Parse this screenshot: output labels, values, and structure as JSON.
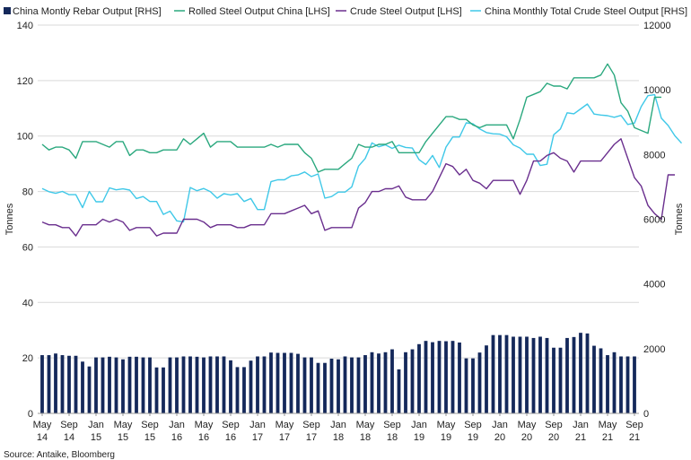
{
  "chart_data": {
    "type": "line+bar",
    "source": "Source: Antaike, Bloomberg",
    "colors": {
      "rebar": "#14285a",
      "rolled": "#2aa87e",
      "crude": "#6a2f8e",
      "total_crude": "#3fc8e8"
    },
    "legend": [
      {
        "key": "rebar",
        "label": "China Montly Rebar Output [RHS]",
        "marker": "square"
      },
      {
        "key": "rolled",
        "label": "Rolled Steel Output China [LHS]",
        "marker": "line"
      },
      {
        "key": "crude",
        "label": "Crude Steel Output [LHS]",
        "marker": "line"
      },
      {
        "key": "total_crude",
        "label": "China Monthly Total Crude Steel Output [RHS]",
        "marker": "line"
      }
    ],
    "y_left": {
      "label": "Tonnes",
      "min": 0,
      "max": 140,
      "ticks": [
        "0",
        "20",
        "40",
        "60",
        "80",
        "100",
        "120",
        "140"
      ]
    },
    "y_right": {
      "label": "Tonnes",
      "min": 0,
      "max": 12000,
      "ticks": [
        "0",
        "2000",
        "4000",
        "6000",
        "8000",
        "10000",
        "12000"
      ]
    },
    "x_ticks": [
      {
        "m": 0,
        "line1": "May",
        "line2": "14"
      },
      {
        "m": 4,
        "line1": "Sep",
        "line2": "14"
      },
      {
        "m": 8,
        "line1": "Jan",
        "line2": "15"
      },
      {
        "m": 12,
        "line1": "May",
        "line2": "15"
      },
      {
        "m": 16,
        "line1": "Sep",
        "line2": "15"
      },
      {
        "m": 20,
        "line1": "Jan",
        "line2": "16"
      },
      {
        "m": 24,
        "line1": "May",
        "line2": "16"
      },
      {
        "m": 28,
        "line1": "Sep",
        "line2": "16"
      },
      {
        "m": 32,
        "line1": "Jan",
        "line2": "17"
      },
      {
        "m": 36,
        "line1": "May",
        "line2": "17"
      },
      {
        "m": 40,
        "line1": "Sep",
        "line2": "17"
      },
      {
        "m": 44,
        "line1": "Jan",
        "line2": "18"
      },
      {
        "m": 48,
        "line1": "May",
        "line2": "18"
      },
      {
        "m": 52,
        "line1": "Sep",
        "line2": "18"
      },
      {
        "m": 56,
        "line1": "Jan",
        "line2": "19"
      },
      {
        "m": 60,
        "line1": "May",
        "line2": "19"
      },
      {
        "m": 64,
        "line1": "Sep",
        "line2": "19"
      },
      {
        "m": 68,
        "line1": "Jan",
        "line2": "20"
      },
      {
        "m": 72,
        "line1": "May",
        "line2": "20"
      },
      {
        "m": 76,
        "line1": "Sep",
        "line2": "20"
      },
      {
        "m": 80,
        "line1": "Jan",
        "line2": "21"
      },
      {
        "m": 84,
        "line1": "May",
        "line2": "21"
      },
      {
        "m": 88,
        "line1": "Sep",
        "line2": "21"
      }
    ],
    "rebar_rhs": [
      1800,
      1800,
      1850,
      1800,
      1780,
      1780,
      1600,
      1450,
      1730,
      1730,
      1750,
      1730,
      1670,
      1750,
      1750,
      1730,
      1730,
      1420,
      1420,
      1730,
      1730,
      1760,
      1760,
      1750,
      1730,
      1760,
      1760,
      1760,
      1640,
      1430,
      1430,
      1630,
      1760,
      1760,
      1880,
      1870,
      1870,
      1870,
      1840,
      1730,
      1730,
      1560,
      1560,
      1690,
      1670,
      1760,
      1730,
      1730,
      1800,
      1890,
      1850,
      1890,
      1980,
      1360,
      1890,
      1980,
      2140,
      2240,
      2200,
      2240,
      2230,
      2240,
      2190,
      1700,
      1700,
      1880,
      2100,
      2420,
      2420,
      2420,
      2370,
      2370,
      2370,
      2330,
      2370,
      2330,
      2030,
      2030,
      2330,
      2360,
      2490,
      2470,
      2090,
      2010,
      1800,
      1890,
      1760,
      1760,
      1760
    ],
    "rolled_lhs": [
      97,
      95,
      96,
      96,
      95,
      92,
      98,
      98,
      98,
      97,
      96,
      98,
      98,
      93,
      95,
      95,
      94,
      94,
      95,
      95,
      95,
      99,
      97,
      99,
      101,
      96,
      98,
      98,
      98,
      96,
      96,
      96,
      96,
      96,
      97,
      96,
      97,
      97,
      97,
      94,
      92,
      87,
      88,
      88,
      88,
      90,
      92,
      97,
      96,
      96,
      97,
      97,
      98,
      94,
      94,
      94,
      94,
      98,
      101,
      104,
      107,
      107,
      106,
      106,
      104,
      103,
      104,
      104,
      104,
      104,
      99,
      106,
      114,
      115,
      116,
      119,
      118,
      118,
      117,
      121,
      121,
      121,
      121,
      122,
      126,
      122,
      112,
      109,
      103,
      102,
      101,
      114,
      114
    ],
    "crude_lhs": [
      69,
      68,
      68,
      67,
      67,
      64,
      68,
      68,
      68,
      70,
      69,
      70,
      69,
      66,
      67,
      67,
      67,
      64,
      65,
      65,
      65,
      70,
      70,
      70,
      69,
      67,
      68,
      68,
      68,
      67,
      67,
      68,
      68,
      68,
      72,
      72,
      72,
      73,
      74,
      75,
      72,
      73,
      66,
      67,
      67,
      67,
      67,
      74,
      76,
      80,
      80,
      81,
      81,
      82,
      78,
      77,
      77,
      77,
      80,
      85,
      90,
      89,
      86,
      88,
      84,
      83,
      81,
      84,
      84,
      84,
      84,
      79,
      84,
      91,
      91,
      93,
      94,
      92,
      91,
      87,
      91,
      91,
      91,
      91,
      94,
      97,
      99,
      92,
      85,
      82,
      75,
      72,
      70,
      86,
      86
    ],
    "total_crude_rhs": [
      6950,
      6850,
      6800,
      6860,
      6760,
      6760,
      6360,
      6860,
      6540,
      6540,
      6970,
      6910,
      6940,
      6900,
      6640,
      6700,
      6550,
      6550,
      6150,
      6250,
      5950,
      5920,
      6980,
      6880,
      6950,
      6850,
      6650,
      6790,
      6750,
      6790,
      6550,
      6640,
      6300,
      6300,
      7160,
      7220,
      7220,
      7340,
      7370,
      7460,
      7320,
      7400,
      6650,
      6700,
      6840,
      6840,
      7000,
      7640,
      7880,
      8360,
      8240,
      8300,
      8190,
      8290,
      8220,
      8200,
      7840,
      7690,
      7970,
      7600,
      8230,
      8540,
      8540,
      8980,
      8950,
      8790,
      8680,
      8640,
      8630,
      8550,
      8300,
      8200,
      8010,
      8010,
      7660,
      7700,
      8610,
      8790,
      9290,
      9260,
      9410,
      9560,
      9250,
      9220,
      9200,
      9150,
      9210,
      8930,
      8970,
      9480,
      9820,
      9850,
      9120,
      8900,
      8580,
      8350
    ]
  }
}
